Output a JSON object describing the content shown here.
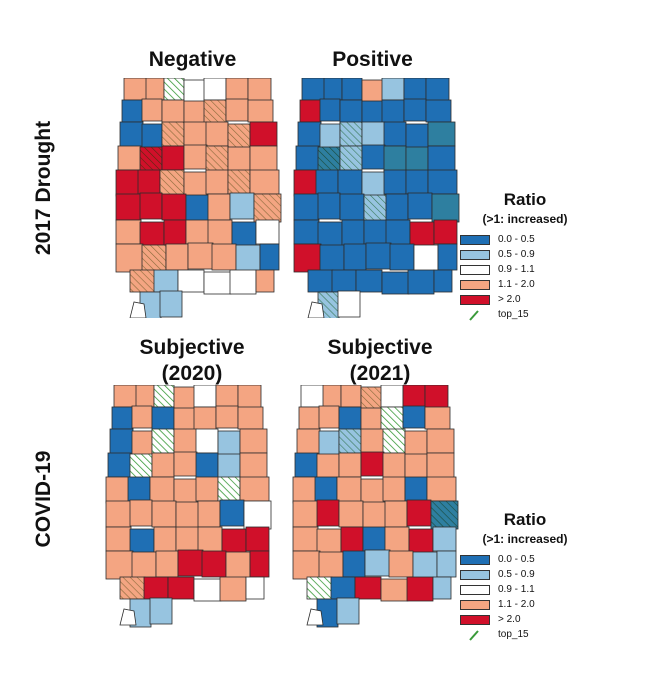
{
  "titles": {
    "negative": "Negative",
    "positive": "Positive",
    "subj2020": "Subjective\n(2020)",
    "subj2021": "Subjective\n(2021)"
  },
  "row_labels": {
    "drought": "2017 Drought",
    "covid": "COVID-19"
  },
  "legend": {
    "title": "Ratio",
    "subtitle": "(>1: increased)",
    "items": [
      {
        "label": "0.0 - 0.5",
        "color": "#1f6fb4"
      },
      {
        "label": "0.5 - 0.9",
        "color": "#97c4e0"
      },
      {
        "label": "0.9 - 1.1",
        "color": "#ffffff"
      },
      {
        "label": "1.1 - 2.0",
        "color": "#f4a582"
      },
      {
        "label": "> 2.0",
        "color": "#d0102a"
      }
    ],
    "hatch_label": "top_15",
    "hatch_color": "#3a9a3a"
  },
  "colors": {
    "border": "#2c2c2c",
    "deep_blue": "#1f6fb4",
    "light_blue": "#97c4e0",
    "white": "#ffffff",
    "salmon": "#f4a582",
    "red": "#d0102a",
    "teal": "#2e7fa0"
  }
}
